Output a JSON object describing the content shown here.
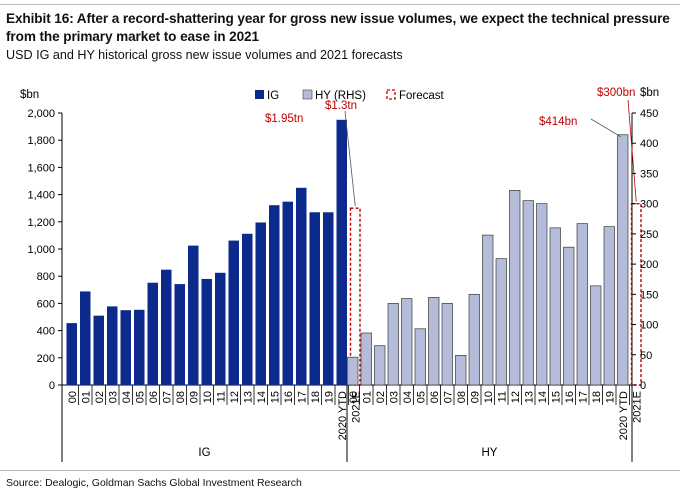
{
  "title": "Exhibit 16: After a record-shattering year for gross new issue volumes, we expect the technical pressure from the primary market to ease in 2021",
  "subtitle": "USD IG and HY historical gross new issue volumes and 2021 forecasts",
  "source": "Source: Dealogic, Goldman Sachs Global Investment Research",
  "colors": {
    "ig": "#0b2a8c",
    "hy": "#b4bcd9",
    "forecast": "#c00000",
    "annotation": "#c00000"
  },
  "chart_data": {
    "type": "bar",
    "left_axis": {
      "unit_label": "$bn",
      "ylim": [
        0,
        2000
      ],
      "ticks": [
        "0",
        "200",
        "400",
        "600",
        "800",
        "1,000",
        "1,200",
        "1,400",
        "1,600",
        "1,800",
        "2,000"
      ]
    },
    "right_axis": {
      "unit_label": "$bn",
      "ylim": [
        0,
        450
      ],
      "ticks": [
        "0",
        "50",
        "100",
        "150",
        "200",
        "250",
        "300",
        "350",
        "400",
        "450"
      ]
    },
    "legend": {
      "placement": "top",
      "items": [
        "IG",
        "HY (RHS)",
        "Forecast"
      ]
    },
    "groups": [
      {
        "name": "IG",
        "axis": "left",
        "categories": [
          "00",
          "01",
          "02",
          "03",
          "04",
          "05",
          "06",
          "07",
          "08",
          "09",
          "10",
          "11",
          "12",
          "13",
          "14",
          "15",
          "16",
          "17",
          "18",
          "19",
          "2020 YTD"
        ],
        "values": [
          455,
          688,
          510,
          578,
          550,
          553,
          752,
          848,
          742,
          1025,
          780,
          825,
          1062,
          1112,
          1195,
          1322,
          1348,
          1450,
          1270,
          1270,
          1950
        ],
        "forecast_category": "2021E",
        "forecast_value": 1300
      },
      {
        "name": "HY",
        "axis": "right",
        "categories": [
          "00",
          "01",
          "02",
          "03",
          "04",
          "05",
          "06",
          "07",
          "08",
          "09",
          "10",
          "11",
          "12",
          "13",
          "14",
          "15",
          "16",
          "17",
          "18",
          "19",
          "2020 YTD"
        ],
        "values": [
          46,
          86,
          65,
          135,
          143,
          93,
          145,
          135,
          49,
          150,
          248,
          209,
          322,
          305,
          300,
          260,
          228,
          267,
          164,
          262,
          414
        ],
        "forecast_category": "2021E",
        "forecast_value": 300
      }
    ],
    "annotations": [
      "$1.95tn",
      "$1.3tn",
      "$414bn",
      "$300bn"
    ]
  }
}
